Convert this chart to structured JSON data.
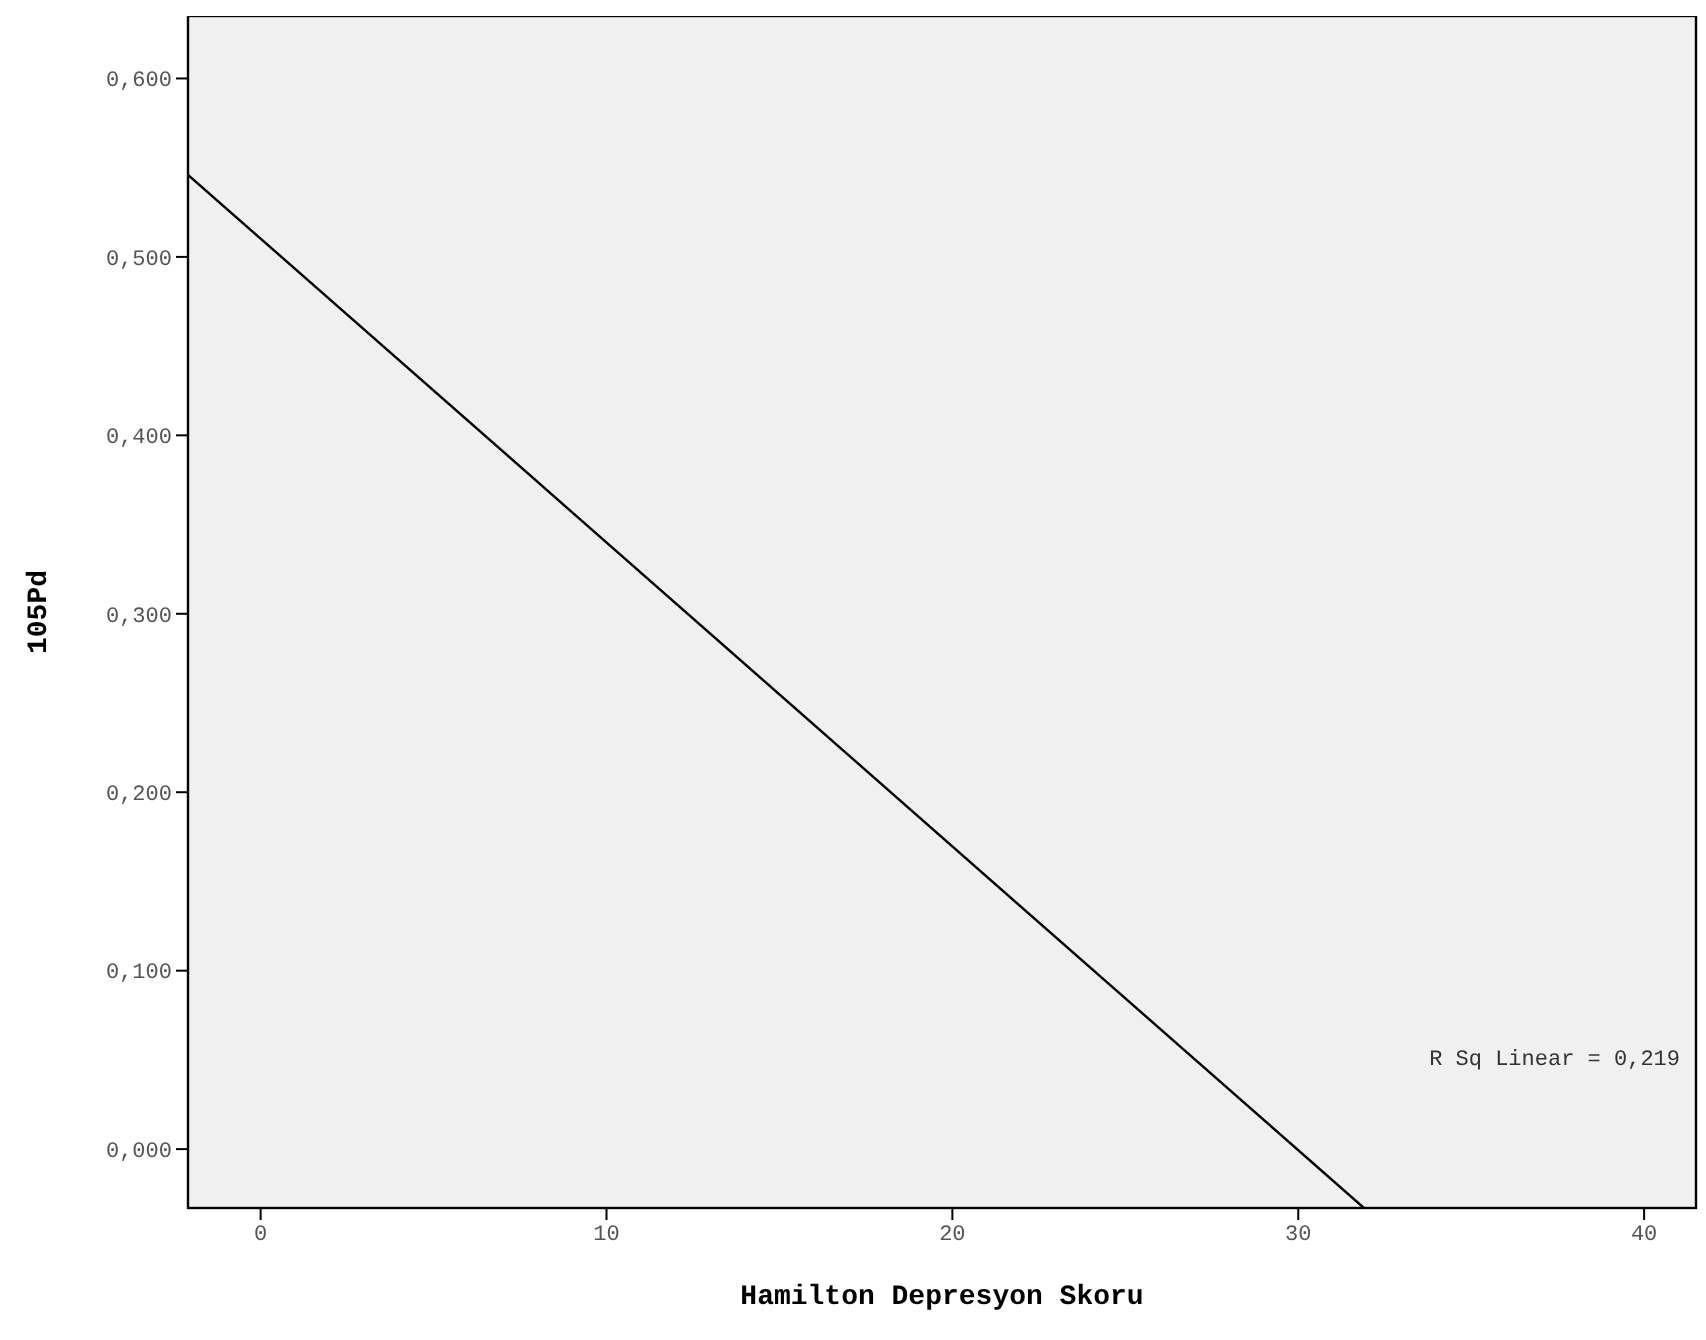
{
  "chart_data": {
    "type": "line",
    "xlabel": "Hamilton Depresyon Skoru",
    "ylabel": "105Pd",
    "series": [
      {
        "color": "#000000",
        "x": [
          -2.1,
          31.9
        ],
        "values": [
          0.546,
          -0.033
        ]
      }
    ],
    "xlim": [
      -2.1,
      41.5
    ],
    "xticks": [
      0,
      10,
      20,
      30,
      40
    ],
    "ylim": [
      -0.033,
      0.635
    ],
    "yticks": [
      {
        "value": 0,
        "label": "0,000"
      },
      {
        "value": 0.1,
        "label": "0,100"
      },
      {
        "value": 0.2,
        "label": "0,200"
      },
      {
        "value": 0.3,
        "label": "0,300"
      },
      {
        "value": 0.4,
        "label": "0,400"
      },
      {
        "value": 0.5,
        "label": "0,500"
      },
      {
        "value": 0.6,
        "label": "0,600"
      }
    ],
    "annotations": [
      "R Sq Linear = 0,219"
    ],
    "grid": false,
    "marker": "none",
    "line_style": "solid"
  }
}
